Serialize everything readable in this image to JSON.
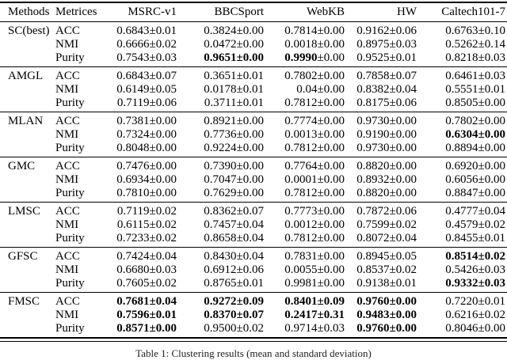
{
  "table": {
    "headers": [
      "Methods",
      "Metrices",
      "MSRC-v1",
      "BBCSport",
      "WebKB",
      "HW",
      "Caltech101-7"
    ],
    "groups": [
      {
        "method": "SC(best)",
        "rows": [
          {
            "metric": "ACC",
            "values": [
              "0.6843±0.01",
              "0.3824±0.00",
              "0.7814±0.00",
              "0.9162±0.06",
              "0.6763±0.10"
            ],
            "bold": [
              0,
              0,
              0,
              0,
              0
            ]
          },
          {
            "metric": "NMI",
            "values": [
              "0.6666±0.02",
              "0.0472±0.00",
              "0.0018±0.00",
              "0.8975±0.03",
              "0.5262±0.14"
            ],
            "bold": [
              0,
              0,
              0,
              0,
              0
            ]
          },
          {
            "metric": "Purity",
            "values": [
              "0.7543±0.03",
              "0.9651±0.00",
              "0.9990±0.00",
              "0.9525±0.01",
              "0.8218±0.03"
            ],
            "bold": [
              0,
              1,
              2,
              0,
              0
            ]
          }
        ]
      },
      {
        "method": "AMGL",
        "rows": [
          {
            "metric": "ACC",
            "values": [
              "0.6843±0.07",
              "0.3651±0.01",
              "0.7802±0.00",
              "0.7858±0.07",
              "0.6461±0.03"
            ],
            "bold": [
              0,
              0,
              0,
              0,
              0
            ]
          },
          {
            "metric": "NMI",
            "values": [
              "0.6149±0.05",
              "0.0178±0.01",
              "0.04±0.00",
              "0.8382±0.04",
              "0.5551±0.01"
            ],
            "bold": [
              0,
              0,
              0,
              0,
              0
            ]
          },
          {
            "metric": "Purity",
            "values": [
              "0.7119±0.06",
              "0.3711±0.01",
              "0.7812±0.00",
              "0.8175±0.06",
              "0.8505±0.00"
            ],
            "bold": [
              0,
              0,
              0,
              0,
              0
            ]
          }
        ]
      },
      {
        "method": "MLAN",
        "rows": [
          {
            "metric": "ACC",
            "values": [
              "0.7381±0.00",
              "0.8921±0.00",
              "0.7774±0.00",
              "0.9730±0.00",
              "0.7802±0.00"
            ],
            "bold": [
              0,
              0,
              0,
              0,
              0
            ]
          },
          {
            "metric": "NMI",
            "values": [
              "0.7324±0.00",
              "0.7736±0.00",
              "0.0013±0.00",
              "0.9190±0.00",
              "0.6304±0.00"
            ],
            "bold": [
              0,
              0,
              0,
              0,
              1
            ]
          },
          {
            "metric": "Purity",
            "values": [
              "0.8048±0.00",
              "0.9224±0.00",
              "0.7812±0.00",
              "0.9730±0.00",
              "0.8894±0.00"
            ],
            "bold": [
              0,
              0,
              0,
              0,
              0
            ]
          }
        ]
      },
      {
        "method": "GMC",
        "rows": [
          {
            "metric": "ACC",
            "values": [
              "0.7476±0.00",
              "0.7390±0.00",
              "0.7764±0.00",
              "0.8820±0.00",
              "0.6920±0.00"
            ],
            "bold": [
              0,
              0,
              0,
              0,
              0
            ]
          },
          {
            "metric": "NMI",
            "values": [
              "0.6934±0.00",
              "0.7047±0.00",
              "0.0001±0.00",
              "0.8932±0.00",
              "0.6056±0.00"
            ],
            "bold": [
              0,
              0,
              0,
              0,
              0
            ]
          },
          {
            "metric": "Purity",
            "values": [
              "0.7810±0.00",
              "0.7629±0.00",
              "0.7812±0.00",
              "0.8820±0.00",
              "0.8847±0.00"
            ],
            "bold": [
              0,
              0,
              0,
              0,
              0
            ]
          }
        ]
      },
      {
        "method": "LMSC",
        "rows": [
          {
            "metric": "ACC",
            "values": [
              "0.7119±0.02",
              "0.8362±0.07",
              "0.7773±0.00",
              "0.7872±0.06",
              "0.4777±0.04"
            ],
            "bold": [
              0,
              0,
              0,
              0,
              0
            ]
          },
          {
            "metric": "NMI",
            "values": [
              "0.6115±0.02",
              "0.7457±0.04",
              "0.0012±0.00",
              "0.7599±0.02",
              "0.4579±0.02"
            ],
            "bold": [
              0,
              0,
              0,
              0,
              0
            ]
          },
          {
            "metric": "Purity",
            "values": [
              "0.7233±0.02",
              "0.8658±0.04",
              "0.7812±0.00",
              "0.8072±0.04",
              "0.8455±0.01"
            ],
            "bold": [
              0,
              0,
              0,
              0,
              0
            ]
          }
        ]
      },
      {
        "method": "GFSC",
        "rows": [
          {
            "metric": "ACC",
            "values": [
              "0.7424±0.04",
              "0.8430±0.04",
              "0.7831±0.00",
              "0.8945±0.05",
              "0.8514±0.02"
            ],
            "bold": [
              0,
              0,
              0,
              0,
              1
            ]
          },
          {
            "metric": "NMI",
            "values": [
              "0.6680±0.03",
              "0.6912±0.06",
              "0.0055±0.00",
              "0.8537±0.02",
              "0.5426±0.03"
            ],
            "bold": [
              0,
              0,
              0,
              0,
              0
            ]
          },
          {
            "metric": "Purity",
            "values": [
              "0.7605±0.02",
              "0.8765±0.01",
              "0.9981±0.00",
              "0.9138±0.01",
              "0.9332±0.03"
            ],
            "bold": [
              0,
              0,
              0,
              0,
              1
            ]
          }
        ]
      },
      {
        "method": "FMSC",
        "rows": [
          {
            "metric": "ACC",
            "values": [
              "0.7681±0.04",
              "0.9272±0.09",
              "0.8401±0.09",
              "0.9760±0.00",
              "0.7220±0.01"
            ],
            "bold": [
              1,
              1,
              1,
              1,
              0
            ]
          },
          {
            "metric": "NMI",
            "values": [
              "0.7596±0.01",
              "0.8370±0.07",
              "0.2417±0.31",
              "0.9483±0.00",
              "0.6216±0.02"
            ],
            "bold": [
              1,
              1,
              1,
              1,
              0
            ]
          },
          {
            "metric": "Purity",
            "values": [
              "0.8571±0.00",
              "0.9500±0.02",
              "0.9714±0.03",
              "0.9760±0.00",
              "0.8046±0.00"
            ],
            "bold": [
              1,
              0,
              0,
              1,
              0
            ]
          }
        ]
      }
    ]
  },
  "caption": {
    "text": "Table 1: Clustering results (mean and standard deviation)"
  }
}
